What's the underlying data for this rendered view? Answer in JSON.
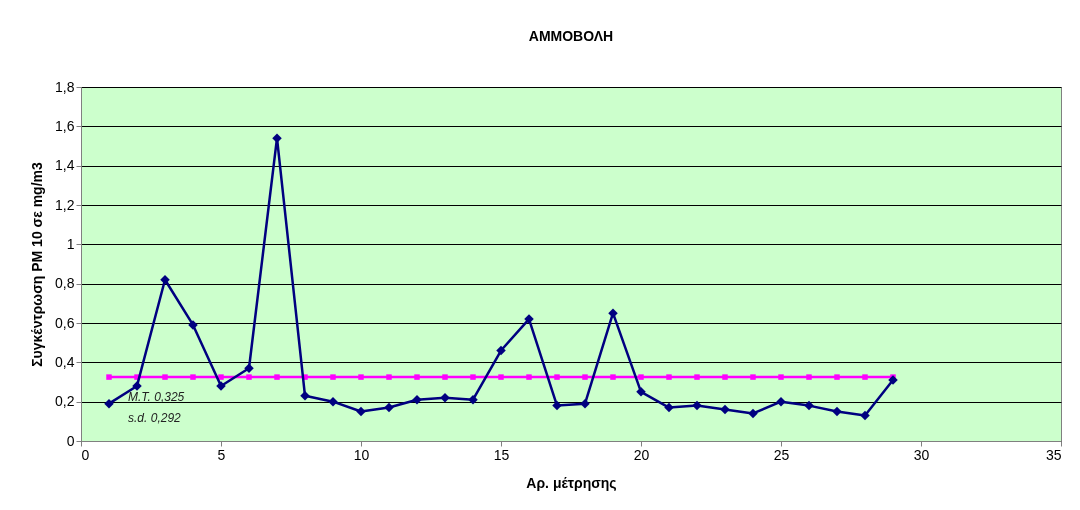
{
  "chart_data": {
    "type": "line",
    "title": "ΑΜΜΟΒΟΛΗ",
    "xlabel": "Αρ. μέτρησης",
    "ylabel": "Συγκέντρωση PM 10 σε mg/m3",
    "x": [
      1,
      2,
      3,
      4,
      5,
      6,
      7,
      8,
      9,
      10,
      11,
      12,
      13,
      14,
      15,
      16,
      17,
      18,
      19,
      20,
      21,
      22,
      23,
      24,
      25,
      26,
      27,
      28,
      29
    ],
    "series": [
      {
        "color": "#000080",
        "marker": "diamond",
        "values": [
          0.19,
          0.28,
          0.82,
          0.59,
          0.28,
          0.37,
          1.54,
          0.23,
          0.2,
          0.15,
          0.17,
          0.21,
          0.22,
          0.21,
          0.46,
          0.62,
          0.18,
          0.19,
          0.65,
          0.25,
          0.17,
          0.18,
          0.16,
          0.14,
          0.2,
          0.18,
          0.15,
          0.13,
          0.31
        ]
      },
      {
        "color": "#ff00ff",
        "marker": "square",
        "values": [
          0.325,
          0.325,
          0.325,
          0.325,
          0.325,
          0.325,
          0.325,
          0.325,
          0.325,
          0.325,
          0.325,
          0.325,
          0.325,
          0.325,
          0.325,
          0.325,
          0.325,
          0.325,
          0.325,
          0.325,
          0.325,
          0.325,
          0.325,
          0.325,
          0.325,
          0.325,
          0.325,
          0.325,
          0.325
        ]
      }
    ],
    "xlim": [
      0,
      35
    ],
    "xticks": [
      0,
      5,
      10,
      15,
      20,
      25,
      30,
      35
    ],
    "ylim": [
      0,
      1.8
    ],
    "yticks": [
      0,
      {
        "value": 0.2,
        "label": "0,2"
      },
      {
        "value": 0.4,
        "label": "0,4"
      },
      {
        "value": 0.6,
        "label": "0,6"
      },
      {
        "value": 0.8,
        "label": "0,8"
      },
      1,
      {
        "value": 1.2,
        "label": "1,2"
      },
      {
        "value": 1.4,
        "label": "1,4"
      },
      {
        "value": 1.6,
        "label": "1,6"
      },
      {
        "value": 1.8,
        "label": "1,8"
      }
    ],
    "grid": "y",
    "annotations": [
      "M.T. 0,325",
      "s.d. 0,292"
    ]
  }
}
